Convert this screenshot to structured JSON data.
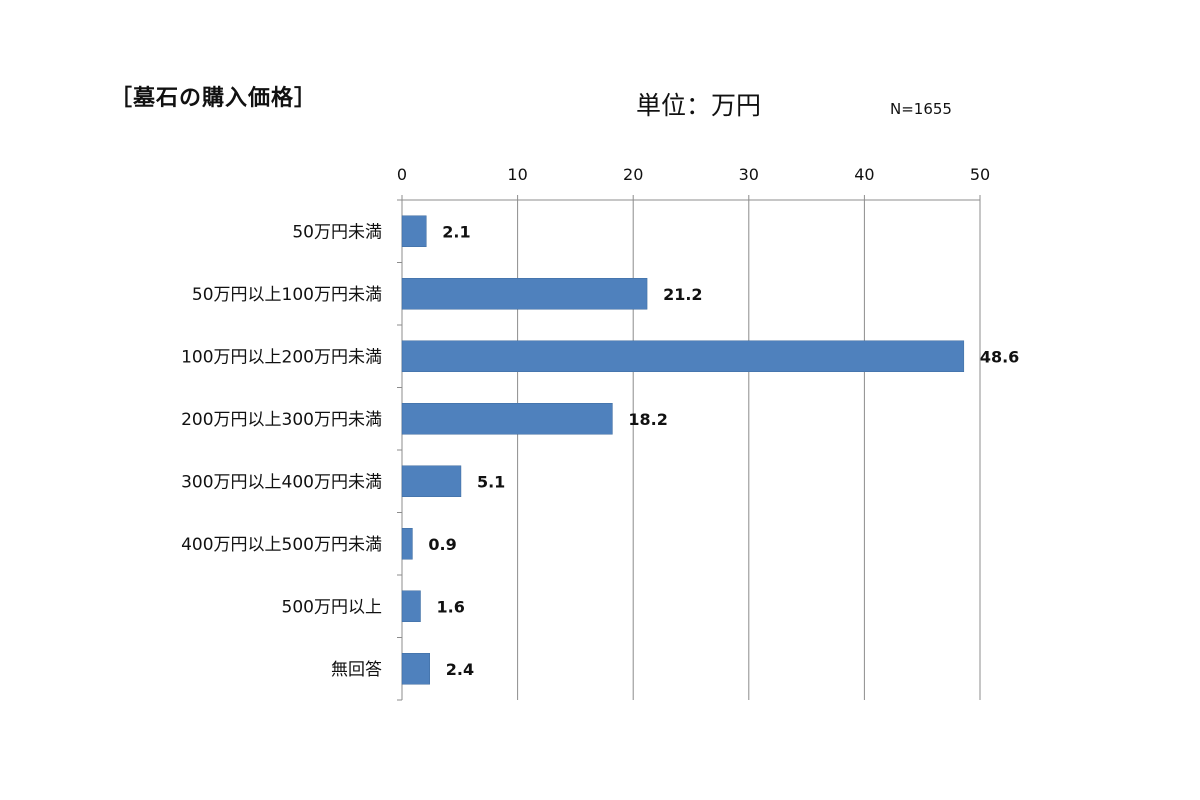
{
  "header": {
    "title": "［墓石の購入価格］",
    "unit": "単位：万円",
    "sample_size": "N=1655"
  },
  "colors": {
    "bar": "#4f81bd",
    "grid": "#8c8c8c",
    "text": "#111111"
  },
  "chart_data": {
    "type": "bar",
    "orientation": "horizontal",
    "title": "［墓石の購入価格］",
    "categories": [
      "50万円未満",
      "50万円以上100万円未満",
      "100万円以上200万円未満",
      "200万円以上300万円未満",
      "300万円以上400万円未満",
      "400万円以上500万円未満",
      "500万円以上",
      "無回答"
    ],
    "values": [
      2.1,
      21.2,
      48.6,
      18.2,
      5.1,
      0.9,
      1.6,
      2.4
    ],
    "value_labels": [
      "2.1",
      "21.2",
      "48.6",
      "18.2",
      "5.1",
      "0.9",
      "1.6",
      "2.4"
    ],
    "xlim": [
      0,
      50
    ],
    "xticks": [
      0,
      10,
      20,
      30,
      40,
      50
    ],
    "xtick_labels": [
      "0",
      "10",
      "20",
      "30",
      "40",
      "50"
    ],
    "grid": true,
    "xaxis_position": "top",
    "legend": "none"
  }
}
